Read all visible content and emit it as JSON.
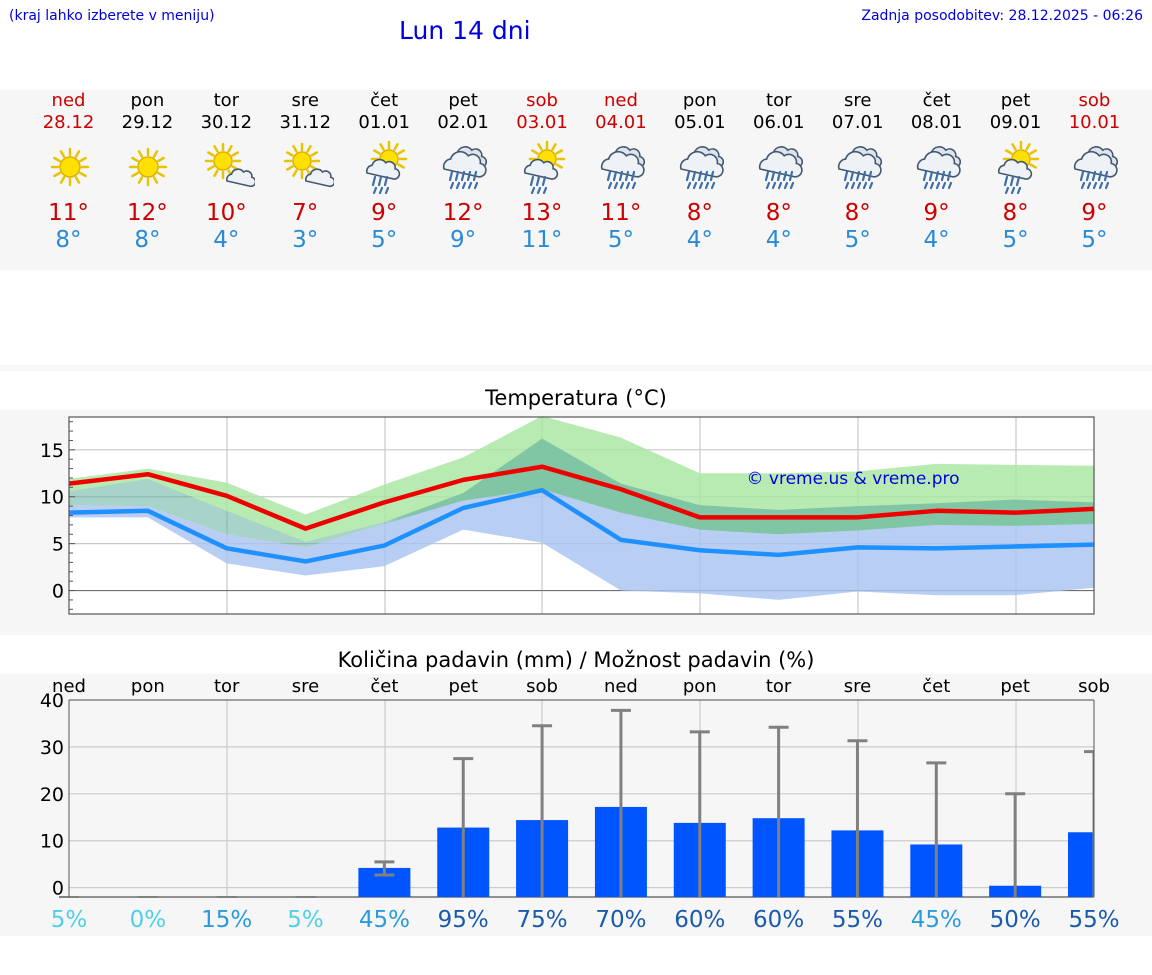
{
  "header": {
    "hint": "(kraj lahko izberete v meniju)",
    "title": "Lun 14 dni",
    "updated": "Zadnja posodobitev: 28.12.2025 - 06:26"
  },
  "colors": {
    "weekend": "#cc0000",
    "tmax": "#cc0000",
    "tmin": "#2a8ad4",
    "max_line": "#ee0000",
    "min_line": "#1e90ff",
    "max_band": "#a8e6a1",
    "min_band": "#a9c3f0",
    "bar": "#0055ff",
    "whisker": "#808080"
  },
  "days": [
    {
      "name": "ned",
      "date": "28.12",
      "weekend": true,
      "icon": "sun-icon",
      "tmax": "11°",
      "tmin": "8°"
    },
    {
      "name": "pon",
      "date": "29.12",
      "weekend": false,
      "icon": "sun-icon",
      "tmax": "12°",
      "tmin": "8°"
    },
    {
      "name": "tor",
      "date": "30.12",
      "weekend": false,
      "icon": "sun-cloud-icon",
      "tmax": "10°",
      "tmin": "4°"
    },
    {
      "name": "sre",
      "date": "31.12",
      "weekend": false,
      "icon": "sun-cloud-icon",
      "tmax": "7°",
      "tmin": "3°"
    },
    {
      "name": "čet",
      "date": "01.01",
      "weekend": false,
      "icon": "sun-cloud-rain-icon",
      "tmax": "9°",
      "tmin": "5°"
    },
    {
      "name": "pet",
      "date": "02.01",
      "weekend": false,
      "icon": "rain-cloud-icon",
      "tmax": "12°",
      "tmin": "9°"
    },
    {
      "name": "sob",
      "date": "03.01",
      "weekend": true,
      "icon": "sun-cloud-rain-icon",
      "tmax": "13°",
      "tmin": "11°"
    },
    {
      "name": "ned",
      "date": "04.01",
      "weekend": true,
      "icon": "rain-cloud-icon",
      "tmax": "11°",
      "tmin": "5°"
    },
    {
      "name": "pon",
      "date": "05.01",
      "weekend": false,
      "icon": "rain-cloud-icon",
      "tmax": "8°",
      "tmin": "4°"
    },
    {
      "name": "tor",
      "date": "06.01",
      "weekend": false,
      "icon": "rain-cloud-icon",
      "tmax": "8°",
      "tmin": "4°"
    },
    {
      "name": "sre",
      "date": "07.01",
      "weekend": false,
      "icon": "rain-cloud-icon",
      "tmax": "8°",
      "tmin": "5°"
    },
    {
      "name": "čet",
      "date": "08.01",
      "weekend": false,
      "icon": "rain-cloud-icon",
      "tmax": "9°",
      "tmin": "4°"
    },
    {
      "name": "pet",
      "date": "09.01",
      "weekend": false,
      "icon": "sun-cloud-rain-icon",
      "tmax": "8°",
      "tmin": "5°"
    },
    {
      "name": "sob",
      "date": "10.01",
      "weekend": true,
      "icon": "rain-cloud-icon",
      "tmax": "9°",
      "tmin": "5°"
    }
  ],
  "chart_data": [
    {
      "type": "line",
      "title": "Temperatura (°C)",
      "watermark": "© vreme.us & vreme.pro",
      "ylim": [
        -2.5,
        18.5
      ],
      "yticks": [
        0,
        5,
        10,
        15
      ],
      "x": [
        0,
        1,
        2,
        3,
        4,
        5,
        6,
        7,
        8,
        9,
        10,
        11,
        12,
        13
      ],
      "series": [
        {
          "name": "max",
          "values": [
            11.4,
            12.4,
            10.1,
            6.6,
            9.4,
            11.8,
            13.2,
            10.8,
            7.8,
            7.8,
            7.8,
            8.5,
            8.3,
            8.7
          ]
        },
        {
          "name": "max_band_low",
          "values": [
            10.6,
            11.9,
            8.5,
            5.2,
            7.3,
            9.6,
            10.8,
            8.3,
            6.5,
            6.0,
            6.4,
            7.0,
            6.9,
            7.1
          ]
        },
        {
          "name": "max_band_high",
          "values": [
            11.9,
            13.0,
            11.5,
            8.1,
            11.3,
            14.2,
            18.6,
            16.3,
            12.5,
            12.5,
            12.7,
            13.5,
            13.4,
            13.3
          ]
        },
        {
          "name": "min",
          "values": [
            8.3,
            8.5,
            4.5,
            3.1,
            4.8,
            8.8,
            10.7,
            5.4,
            4.3,
            3.8,
            4.6,
            4.5,
            4.7,
            4.9
          ]
        },
        {
          "name": "min_band_low",
          "values": [
            7.8,
            7.8,
            2.9,
            1.6,
            2.6,
            6.5,
            5.1,
            0.0,
            -0.3,
            -1.0,
            -0.1,
            -0.5,
            -0.5,
            0.3
          ]
        },
        {
          "name": "min_band_high",
          "values": [
            9.1,
            9.0,
            6.0,
            4.6,
            7.1,
            10.4,
            16.2,
            11.4,
            9.1,
            8.6,
            9.0,
            9.3,
            9.7,
            9.4
          ]
        }
      ]
    },
    {
      "type": "bar",
      "title": "Količina padavin (mm) / Možnost padavin (%)",
      "ylim": [
        -2,
        40
      ],
      "yticks": [
        0,
        10,
        20,
        30,
        40
      ],
      "categories": [
        "ned",
        "pon",
        "tor",
        "sre",
        "čet",
        "pet",
        "sob",
        "ned",
        "pon",
        "tor",
        "sre",
        "čet",
        "pet",
        "sob"
      ],
      "values": [
        0,
        0,
        0,
        0,
        4.2,
        12.8,
        14.4,
        17.2,
        13.8,
        14.8,
        12.2,
        9.2,
        0.4,
        11.8
      ],
      "err_low": [
        0,
        0,
        0,
        0,
        2.7,
        0,
        0,
        0,
        0,
        0,
        0,
        0,
        0,
        0
      ],
      "err_high": [
        0,
        0,
        0,
        0,
        5.5,
        27.5,
        34.5,
        37.8,
        33.2,
        34.2,
        31.3,
        26.6,
        20.0,
        29.0
      ],
      "probability": [
        {
          "label": "5%",
          "color": "#4fd0e6"
        },
        {
          "label": "0%",
          "color": "#4fd0e6"
        },
        {
          "label": "15%",
          "color": "#2a9bdb"
        },
        {
          "label": "5%",
          "color": "#4fd0e6"
        },
        {
          "label": "45%",
          "color": "#2a9bdb"
        },
        {
          "label": "95%",
          "color": "#1a5aad"
        },
        {
          "label": "75%",
          "color": "#1a5aad"
        },
        {
          "label": "70%",
          "color": "#1a5aad"
        },
        {
          "label": "60%",
          "color": "#1a5aad"
        },
        {
          "label": "60%",
          "color": "#1a5aad"
        },
        {
          "label": "55%",
          "color": "#1a5aad"
        },
        {
          "label": "45%",
          "color": "#2a9bdb"
        },
        {
          "label": "50%",
          "color": "#1a5aad"
        },
        {
          "label": "55%",
          "color": "#1a5aad"
        }
      ]
    }
  ]
}
